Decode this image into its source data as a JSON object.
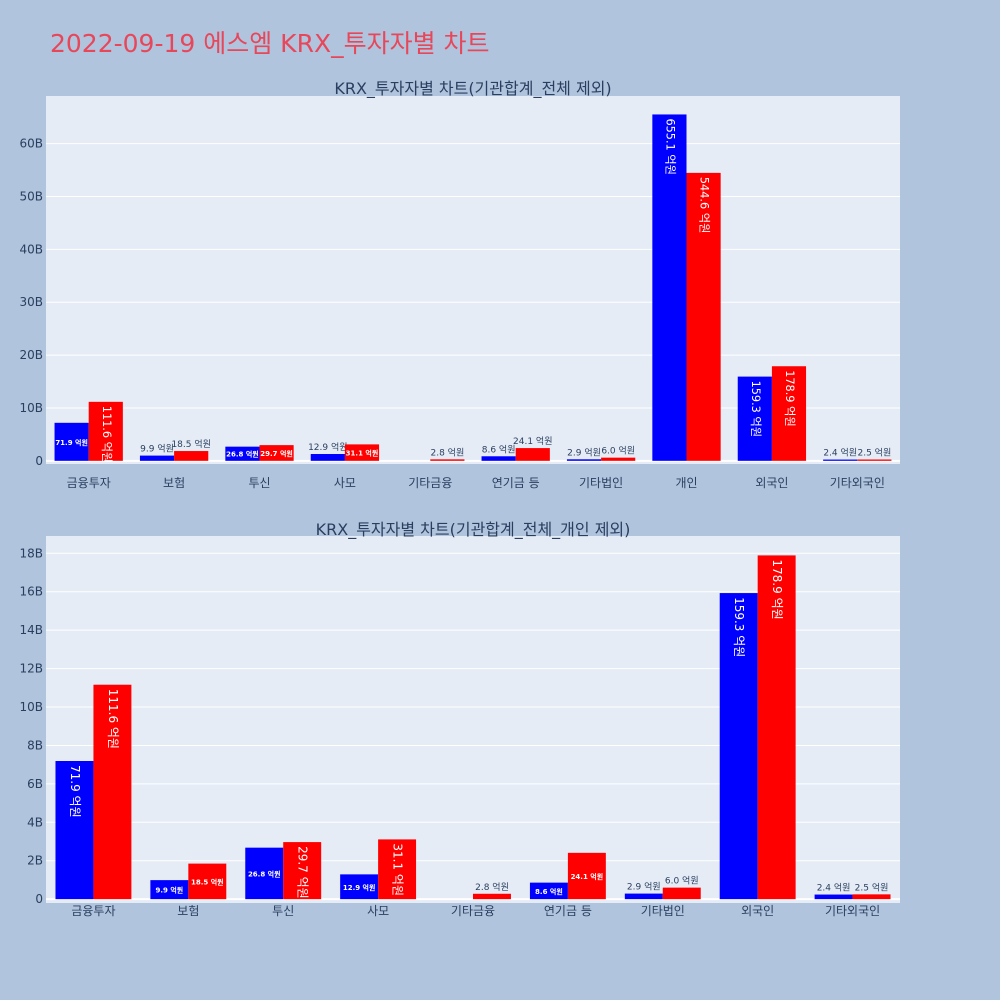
{
  "page": {
    "title": "2022-09-19 에스엠 KRX_투자자별 차트"
  },
  "colors": {
    "background": "#b0c4de",
    "plot_bg": "#e5ecf6",
    "buy": "#0000ff",
    "sell": "#ff0000",
    "title": "#e8475a",
    "text": "#2a3f5f"
  },
  "chart_data": [
    {
      "type": "bar",
      "title": "KRX_투자자별 차트(기관합계_전체 제외)",
      "categories": [
        "금융투자",
        "보험",
        "투신",
        "사모",
        "기타금융",
        "연기금 등",
        "기타법인",
        "개인",
        "외국인",
        "기타외국인"
      ],
      "series": [
        {
          "values": [
            7.19,
            0.99,
            2.68,
            1.29,
            0,
            0.86,
            0.29,
            65.51,
            15.93,
            0.24
          ],
          "labels": [
            "71.9 억원",
            "9.9 억원",
            "26.8 억원",
            "12.9 억원",
            "",
            "8.6 억원",
            "2.9 억원",
            "655.1 억원",
            "159.3 억원",
            "2.4 억원"
          ]
        },
        {
          "values": [
            11.16,
            1.85,
            2.97,
            3.11,
            0.28,
            2.41,
            0.6,
            54.46,
            17.89,
            0.25
          ],
          "labels": [
            "111.6 억원",
            "18.5 억원",
            "29.7 억원",
            "31.1 억원",
            "2.8 억원",
            "24.1 억원",
            "6.0 억원",
            "544.6 억원",
            "178.9 억원",
            "2.5 억원"
          ]
        }
      ],
      "ylim": [
        -0.6,
        69
      ],
      "yticks": [
        0,
        10,
        20,
        30,
        40,
        50,
        60
      ],
      "ytick_labels": [
        "0",
        "10B",
        "20B",
        "30B",
        "40B",
        "50B",
        "60B"
      ],
      "grid": true
    },
    {
      "type": "bar",
      "title": "KRX_투자자별 차트(기관합계_전체_개인 제외)",
      "categories": [
        "금융투자",
        "보험",
        "투신",
        "사모",
        "기타금융",
        "연기금 등",
        "기타법인",
        "외국인",
        "기타외국인"
      ],
      "series": [
        {
          "values": [
            7.19,
            0.99,
            2.68,
            1.29,
            0,
            0.86,
            0.29,
            15.93,
            0.24
          ],
          "labels": [
            "71.9 억원",
            "9.9 억원",
            "26.8 억원",
            "12.9 억원",
            "",
            "8.6 억원",
            "2.9 억원",
            "159.3 억원",
            "2.4 억원"
          ]
        },
        {
          "values": [
            11.16,
            1.85,
            2.97,
            3.11,
            0.28,
            2.41,
            0.6,
            17.89,
            0.25
          ],
          "labels": [
            "111.6 억원",
            "18.5 억원",
            "29.7 억원",
            "31.1 억원",
            "2.8 억원",
            "24.1 억원",
            "6.0 억원",
            "178.9 억원",
            "2.5 억원"
          ]
        }
      ],
      "ylim": [
        -0.2,
        18.9
      ],
      "yticks": [
        0,
        2,
        4,
        6,
        8,
        10,
        12,
        14,
        16,
        18
      ],
      "ytick_labels": [
        "0",
        "2B",
        "4B",
        "6B",
        "8B",
        "10B",
        "12B",
        "14B",
        "16B",
        "18B"
      ],
      "grid": true
    }
  ]
}
